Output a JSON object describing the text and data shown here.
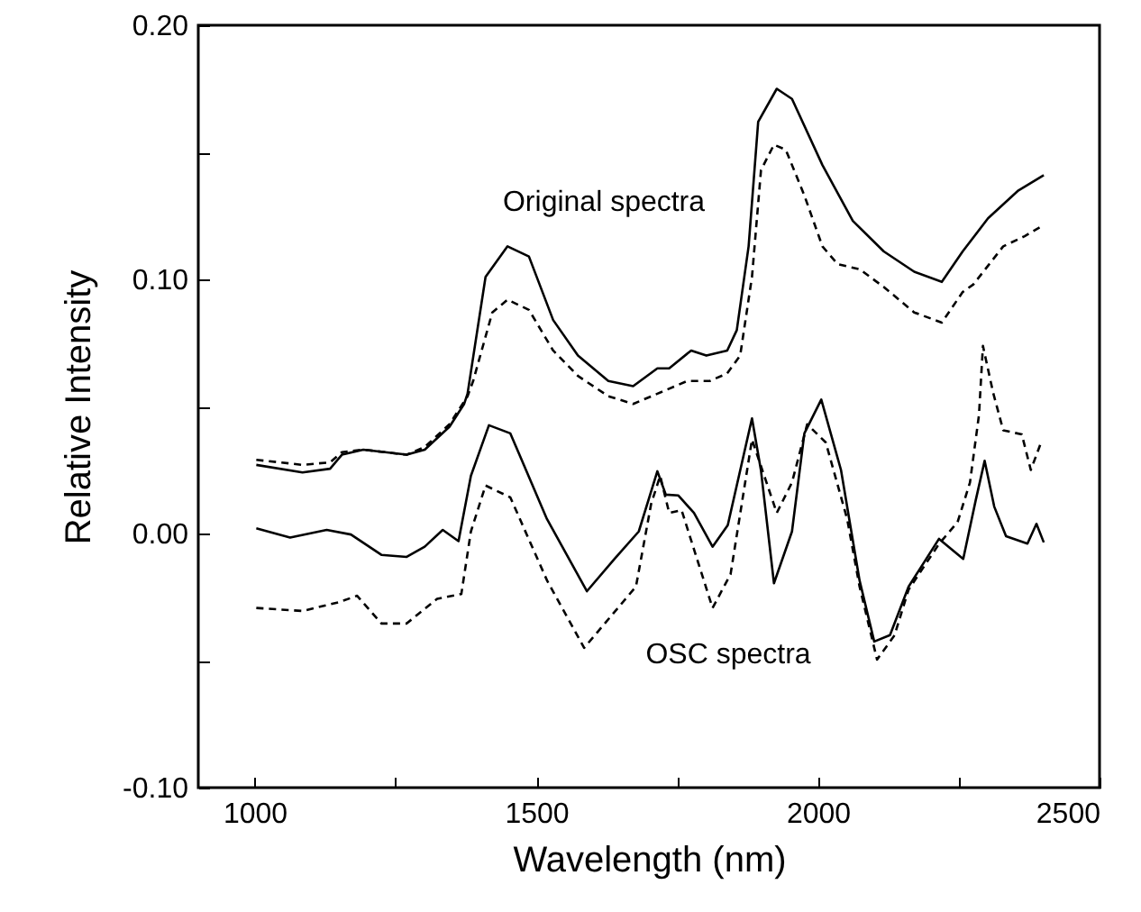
{
  "chart_data": {
    "type": "line",
    "xlabel": "Wavelength (nm)",
    "ylabel": "Relative Intensity",
    "xlim": [
      900,
      2500
    ],
    "ylim": [
      -0.1,
      0.2
    ],
    "xticks": [
      1000,
      {
        "value": 1250,
        "label": null
      },
      1500,
      {
        "value": 1750,
        "label": null
      },
      2000,
      {
        "value": 2250,
        "label": null
      },
      2500
    ],
    "yticks": [
      {
        "value": -0.1,
        "label": "-0.10"
      },
      {
        "value": -0.05,
        "label": null
      },
      {
        "value": 0,
        "label": "0.00"
      },
      {
        "value": 0.05,
        "label": null
      },
      {
        "value": 0.1,
        "label": "0.10"
      },
      {
        "value": 0.15,
        "label": null
      },
      {
        "value": 0.2,
        "label": "0.20"
      }
    ],
    "grid": false,
    "annotations": [
      "Original spectra",
      "OSC spectra"
    ],
    "series": [
      {
        "color": "#000000",
        "line_style": "solid",
        "x": [
          1003,
          1085,
          1134,
          1155,
          1193,
          1270,
          1302,
          1346,
          1372,
          1378,
          1410,
          1449,
          1487,
          1530,
          1574,
          1628,
          1672,
          1715,
          1736,
          1775,
          1802,
          1839,
          1856,
          1877,
          1894,
          1927,
          1954,
          2008,
          2062,
          2117,
          2171,
          2220,
          2257,
          2302,
          2356,
          2401
        ],
        "values": [
          0.027,
          0.024,
          0.0255,
          0.031,
          0.033,
          0.031,
          0.033,
          0.042,
          0.051,
          0.055,
          0.101,
          0.113,
          0.109,
          0.084,
          0.07,
          0.06,
          0.058,
          0.065,
          0.065,
          0.072,
          0.07,
          0.072,
          0.08,
          0.113,
          0.162,
          0.175,
          0.171,
          0.145,
          0.123,
          0.111,
          0.103,
          0.099,
          0.111,
          0.124,
          0.135,
          0.141
        ]
      },
      {
        "color": "#000000",
        "line_style": "dashed",
        "x": [
          1003,
          1085,
          1134,
          1155,
          1193,
          1270,
          1302,
          1346,
          1378,
          1388,
          1422,
          1449,
          1487,
          1530,
          1574,
          1628,
          1672,
          1715,
          1768,
          1808,
          1839,
          1862,
          1883,
          1899,
          1922,
          1943,
          1976,
          2008,
          2035,
          2074,
          2117,
          2171,
          2220,
          2257,
          2276,
          2329,
          2367,
          2398
        ],
        "values": [
          0.029,
          0.027,
          0.028,
          0.032,
          0.033,
          0.031,
          0.034,
          0.043,
          0.054,
          0.06,
          0.087,
          0.092,
          0.088,
          0.072,
          0.062,
          0.054,
          0.051,
          0.055,
          0.06,
          0.06,
          0.063,
          0.07,
          0.101,
          0.143,
          0.153,
          0.151,
          0.133,
          0.113,
          0.106,
          0.104,
          0.097,
          0.087,
          0.083,
          0.095,
          0.098,
          0.113,
          0.117,
          0.121
        ]
      },
      {
        "color": "#000000",
        "line_style": "solid",
        "x": [
          1003,
          1063,
          1128,
          1171,
          1225,
          1270,
          1302,
          1334,
          1362,
          1384,
          1416,
          1454,
          1519,
          1590,
          1639,
          1682,
          1715,
          1730,
          1752,
          1780,
          1813,
          1840,
          1883,
          1899,
          1922,
          1954,
          1976,
          2006,
          2041,
          2074,
          2100,
          2128,
          2161,
          2215,
          2258,
          2280,
          2296,
          2313,
          2334,
          2372,
          2388,
          2401
        ],
        "values": [
          0.002,
          -0.0016,
          0.0014,
          -0.0004,
          -0.0084,
          -0.0092,
          -0.0052,
          0.0014,
          -0.003,
          0.0227,
          0.0426,
          0.0394,
          0.0057,
          -0.0227,
          -0.01,
          0.0008,
          0.0245,
          0.0153,
          0.015,
          0.0081,
          -0.0052,
          0.0033,
          0.0453,
          0.0247,
          -0.0196,
          0.0008,
          0.0394,
          0.0527,
          0.025,
          -0.0185,
          -0.0425,
          -0.04,
          -0.0209,
          -0.0021,
          -0.01,
          0.0129,
          0.0286,
          0.0106,
          -0.0011,
          -0.004,
          0.0038,
          -0.0035
        ]
      },
      {
        "color": "#000000",
        "line_style": "dashed",
        "x": [
          1003,
          1085,
          1150,
          1182,
          1225,
          1270,
          1324,
          1367,
          1384,
          1410,
          1454,
          1519,
          1585,
          1677,
          1704,
          1720,
          1736,
          1758,
          1813,
          1845,
          1883,
          1927,
          1954,
          1981,
          2014,
          2052,
          2074,
          2105,
          2136,
          2161,
          2215,
          2248,
          2270,
          2286,
          2293,
          2311,
          2329,
          2362,
          2378,
          2395
        ],
        "values": [
          -0.0293,
          -0.0305,
          -0.027,
          -0.0245,
          -0.0354,
          -0.0354,
          -0.0257,
          -0.0238,
          0.0008,
          0.0189,
          0.0142,
          -0.0184,
          -0.045,
          -0.0209,
          0.0117,
          0.0227,
          0.0081,
          0.0092,
          -0.0293,
          -0.016,
          0.037,
          0.0081,
          0.0201,
          0.043,
          0.0358,
          0.0057,
          -0.0209,
          -0.0496,
          -0.0401,
          -0.0221,
          -0.0041,
          0.0045,
          0.0201,
          0.0467,
          0.0738,
          0.0555,
          0.0406,
          0.039,
          0.025,
          0.0351
        ]
      }
    ]
  }
}
